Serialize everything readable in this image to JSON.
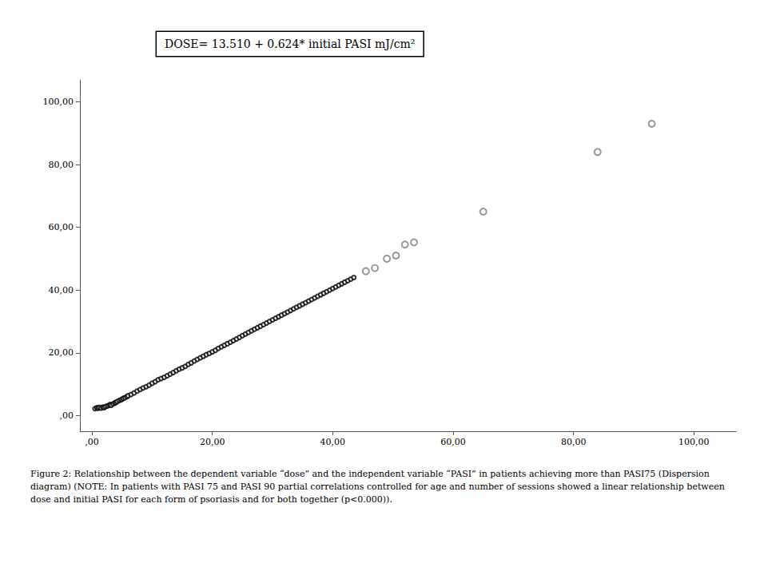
{
  "chart_data": {
    "type": "scatter",
    "annotations": [
      "DOSE= 13.510 + 0.624* initial PASI mJ/cm²"
    ],
    "caption": "Figure 2: Relationship between the dependent variable “dose” and the independent variable “PASI” in patients achieving more than PASI75 (Dispersion diagram) (NOTE: In patients with PASI 75 and PASI 90 partial correlations controlled for age and number of sessions showed a linear relationship between dose and initial PASI for each form of psoriasis and for both together (p<0.000)).",
    "xlim": [
      -2,
      107
    ],
    "ylim": [
      -5,
      107
    ],
    "xticks": [
      {
        "value": 0,
        "label": ",00"
      },
      {
        "value": 20,
        "label": "20,00"
      },
      {
        "value": 40,
        "label": "40,00"
      },
      {
        "value": 60,
        "label": "60,00"
      },
      {
        "value": 80,
        "label": "80,00"
      },
      {
        "value": 100,
        "label": "100,00"
      }
    ],
    "yticks": [
      {
        "value": 0,
        "label": ",00"
      },
      {
        "value": 20,
        "label": "20,00"
      },
      {
        "value": 40,
        "label": "40,00"
      },
      {
        "value": 60,
        "label": "60,00"
      },
      {
        "value": 80,
        "label": "80,00"
      },
      {
        "value": 100,
        "label": "100,00"
      }
    ],
    "grid": false,
    "series": [
      {
        "color": "#000000",
        "marker": "open_circle",
        "x": [
          0.5,
          0.8,
          1.0,
          1.2,
          1.5,
          1.8,
          2.0,
          2.2,
          2.5,
          2.8,
          3.0,
          3.2,
          3.5,
          3.8,
          4.0,
          4.2,
          4.5,
          4.8,
          5.0,
          5.2,
          5.5,
          5.8,
          6.0,
          6.5,
          7.0,
          7.5,
          8.0,
          8.5,
          9.0,
          9.5,
          10.0,
          10.5,
          11.0,
          11.5,
          12.0,
          12.5,
          13.0,
          13.5,
          14.0,
          14.5,
          15.0,
          15.5,
          16.0,
          16.5,
          17.0,
          17.5,
          18.0,
          18.5,
          19.0,
          19.5,
          20.0,
          20.5,
          21.0,
          21.5,
          22.0,
          22.5,
          23.0,
          23.5,
          24.0,
          24.5,
          25.0,
          25.5,
          26.0,
          26.5,
          27.0,
          27.5,
          28.0,
          28.5,
          29.0,
          29.5,
          30.0,
          30.5,
          31.0,
          31.5,
          32.0,
          32.5,
          33.0,
          33.5,
          34.0,
          34.5,
          35.0,
          35.5,
          36.0,
          36.5,
          37.0,
          37.5,
          38.0,
          38.5,
          39.0,
          39.5,
          40.0,
          40.5,
          41.0,
          41.5,
          42.0,
          42.5,
          43.0,
          43.5
        ],
        "values": [
          2.2,
          2.5,
          2.3,
          2.6,
          2.4,
          2.7,
          2.5,
          2.8,
          3.0,
          3.2,
          3.5,
          3.3,
          3.7,
          4.0,
          4.2,
          4.5,
          4.8,
          5.0,
          5.2,
          5.5,
          5.7,
          6.0,
          6.3,
          6.7,
          7.2,
          7.8,
          8.3,
          8.8,
          9.2,
          9.7,
          10.3,
          10.8,
          11.4,
          11.8,
          12.2,
          12.7,
          13.2,
          13.7,
          14.3,
          14.8,
          15.2,
          15.7,
          16.3,
          16.8,
          17.4,
          17.9,
          18.4,
          18.9,
          19.4,
          19.8,
          20.3,
          20.8,
          21.4,
          21.9,
          22.4,
          22.9,
          23.4,
          23.9,
          24.4,
          24.9,
          25.5,
          26.0,
          26.5,
          27.0,
          27.5,
          28.0,
          28.5,
          29.0,
          29.5,
          30.0,
          30.5,
          31.0,
          31.5,
          32.0,
          32.5,
          33.0,
          33.5,
          34.0,
          34.5,
          35.0,
          35.5,
          36.0,
          36.5,
          37.0,
          37.5,
          38.0,
          38.5,
          39.0,
          39.5,
          40.0,
          40.5,
          41.0,
          41.5,
          42.0,
          42.5,
          43.0,
          43.5,
          44.0
        ]
      },
      {
        "color": "#808080",
        "marker": "open_circle",
        "x": [
          45.5,
          47.0,
          49.0,
          50.5,
          52.0,
          53.5,
          65.0,
          84.0,
          93.0
        ],
        "values": [
          46.0,
          47.0,
          50.0,
          51.0,
          54.5,
          55.2,
          65.0,
          84.0,
          93.0
        ]
      }
    ]
  }
}
